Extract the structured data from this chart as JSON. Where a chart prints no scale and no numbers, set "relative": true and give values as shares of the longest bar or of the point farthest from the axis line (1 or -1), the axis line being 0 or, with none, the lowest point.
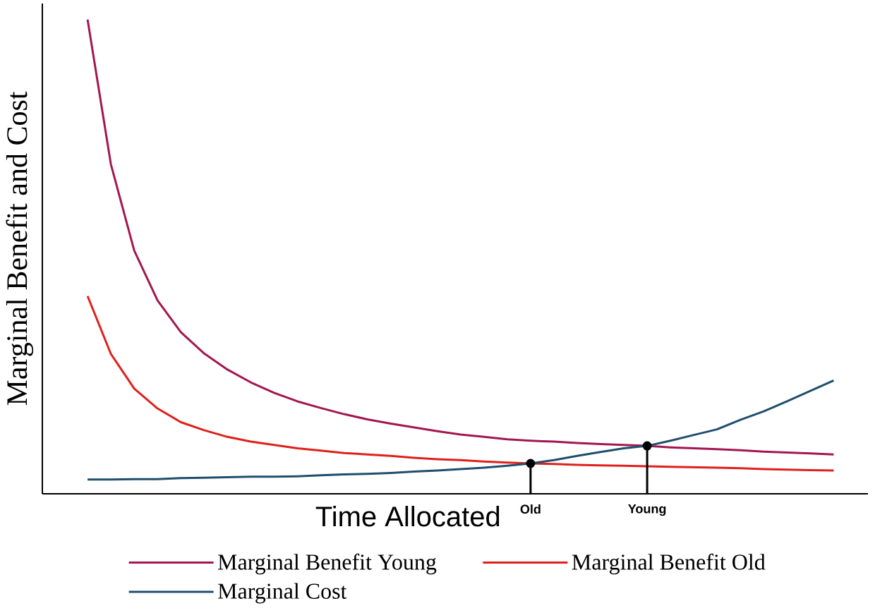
{
  "chart_data": {
    "type": "line",
    "xlabel": "Time Allocated",
    "ylabel": "Marginal Benefit and Cost",
    "relative": true,
    "tick_labels": "x",
    "legend": "bottom",
    "categories": [
      null,
      null,
      null,
      null,
      null,
      null,
      null,
      null,
      null,
      null,
      null,
      null,
      null,
      null,
      null,
      null,
      null,
      null,
      null,
      "Old",
      null,
      null,
      null,
      null,
      "Young",
      null,
      null,
      null,
      null,
      null,
      null,
      null,
      null
    ],
    "series": [
      {
        "name": "Marginal Benefit Young",
        "color": "#a3174f",
        "values": [
          1.0,
          0.695,
          0.513,
          0.408,
          0.341,
          0.296,
          0.262,
          0.235,
          0.213,
          0.195,
          0.181,
          0.168,
          0.157,
          0.148,
          0.14,
          0.132,
          0.125,
          0.12,
          0.115,
          0.112,
          0.11,
          0.107,
          0.105,
          0.103,
          0.101,
          0.098,
          0.096,
          0.094,
          0.092,
          0.089,
          0.087,
          0.085,
          0.083
        ]
      },
      {
        "name": "Marginal Benefit Old",
        "color": "#e0201b",
        "values": [
          0.417,
          0.295,
          0.222,
          0.18,
          0.151,
          0.134,
          0.12,
          0.11,
          0.103,
          0.096,
          0.091,
          0.086,
          0.083,
          0.08,
          0.076,
          0.073,
          0.071,
          0.068,
          0.066,
          0.064,
          0.063,
          0.061,
          0.06,
          0.059,
          0.058,
          0.057,
          0.056,
          0.055,
          0.054,
          0.052,
          0.051,
          0.05,
          0.049
        ]
      },
      {
        "name": "Marginal Cost",
        "color": "#1f4e6e",
        "values": [
          0.03,
          0.03,
          0.031,
          0.031,
          0.033,
          0.034,
          0.035,
          0.036,
          0.036,
          0.037,
          0.039,
          0.041,
          0.042,
          0.044,
          0.047,
          0.049,
          0.052,
          0.055,
          0.059,
          0.064,
          0.071,
          0.08,
          0.088,
          0.096,
          0.101,
          0.112,
          0.124,
          0.136,
          0.156,
          0.174,
          0.195,
          0.217,
          0.239
        ]
      },
      {
        "type": "lollipop",
        "color": "#000000",
        "marker": "circle",
        "values": [
          null,
          null,
          null,
          null,
          null,
          null,
          null,
          null,
          null,
          null,
          null,
          null,
          null,
          null,
          null,
          null,
          null,
          null,
          null,
          0.064,
          null,
          null,
          null,
          null,
          0.101,
          null,
          null,
          null,
          null,
          null,
          null,
          null,
          null
        ]
      }
    ]
  }
}
